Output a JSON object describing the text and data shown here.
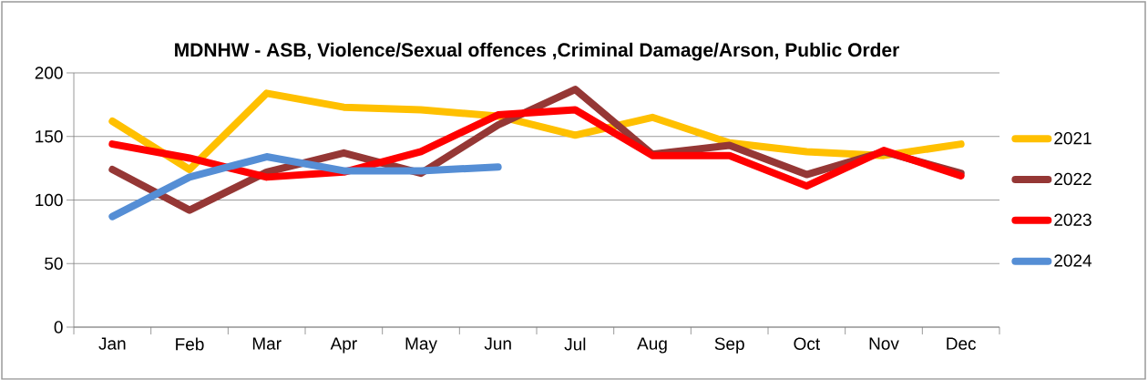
{
  "chart_data": {
    "type": "line",
    "title": "MDNHW - ASB, Violence/Sexual offences ,Criminal Damage/Arson, Public Order",
    "categories": [
      "Jan",
      "Feb",
      "Mar",
      "Apr",
      "May",
      "Jun",
      "Jul",
      "Aug",
      "Sep",
      "Oct",
      "Nov",
      "Dec"
    ],
    "series": [
      {
        "name": "2021",
        "color": "#ffc000",
        "values": [
          162,
          124,
          184,
          173,
          171,
          166,
          151,
          165,
          145,
          138,
          135,
          144
        ]
      },
      {
        "name": "2022",
        "color": "#953735",
        "values": [
          124,
          92,
          122,
          137,
          121,
          159,
          187,
          136,
          143,
          120,
          138,
          121
        ]
      },
      {
        "name": "2023",
        "color": "#ff0000",
        "values": [
          144,
          133,
          118,
          122,
          138,
          167,
          171,
          135,
          135,
          111,
          139,
          119
        ]
      },
      {
        "name": "2024",
        "color": "#558ed5",
        "values": [
          87,
          118,
          134,
          123,
          123,
          126,
          null,
          null,
          null,
          null,
          null,
          null
        ]
      }
    ],
    "ylim": [
      0,
      200
    ],
    "yticks": [
      0,
      50,
      100,
      150,
      200
    ],
    "grid": "y",
    "legend": "right",
    "marker": "none",
    "line_style": "solid"
  }
}
